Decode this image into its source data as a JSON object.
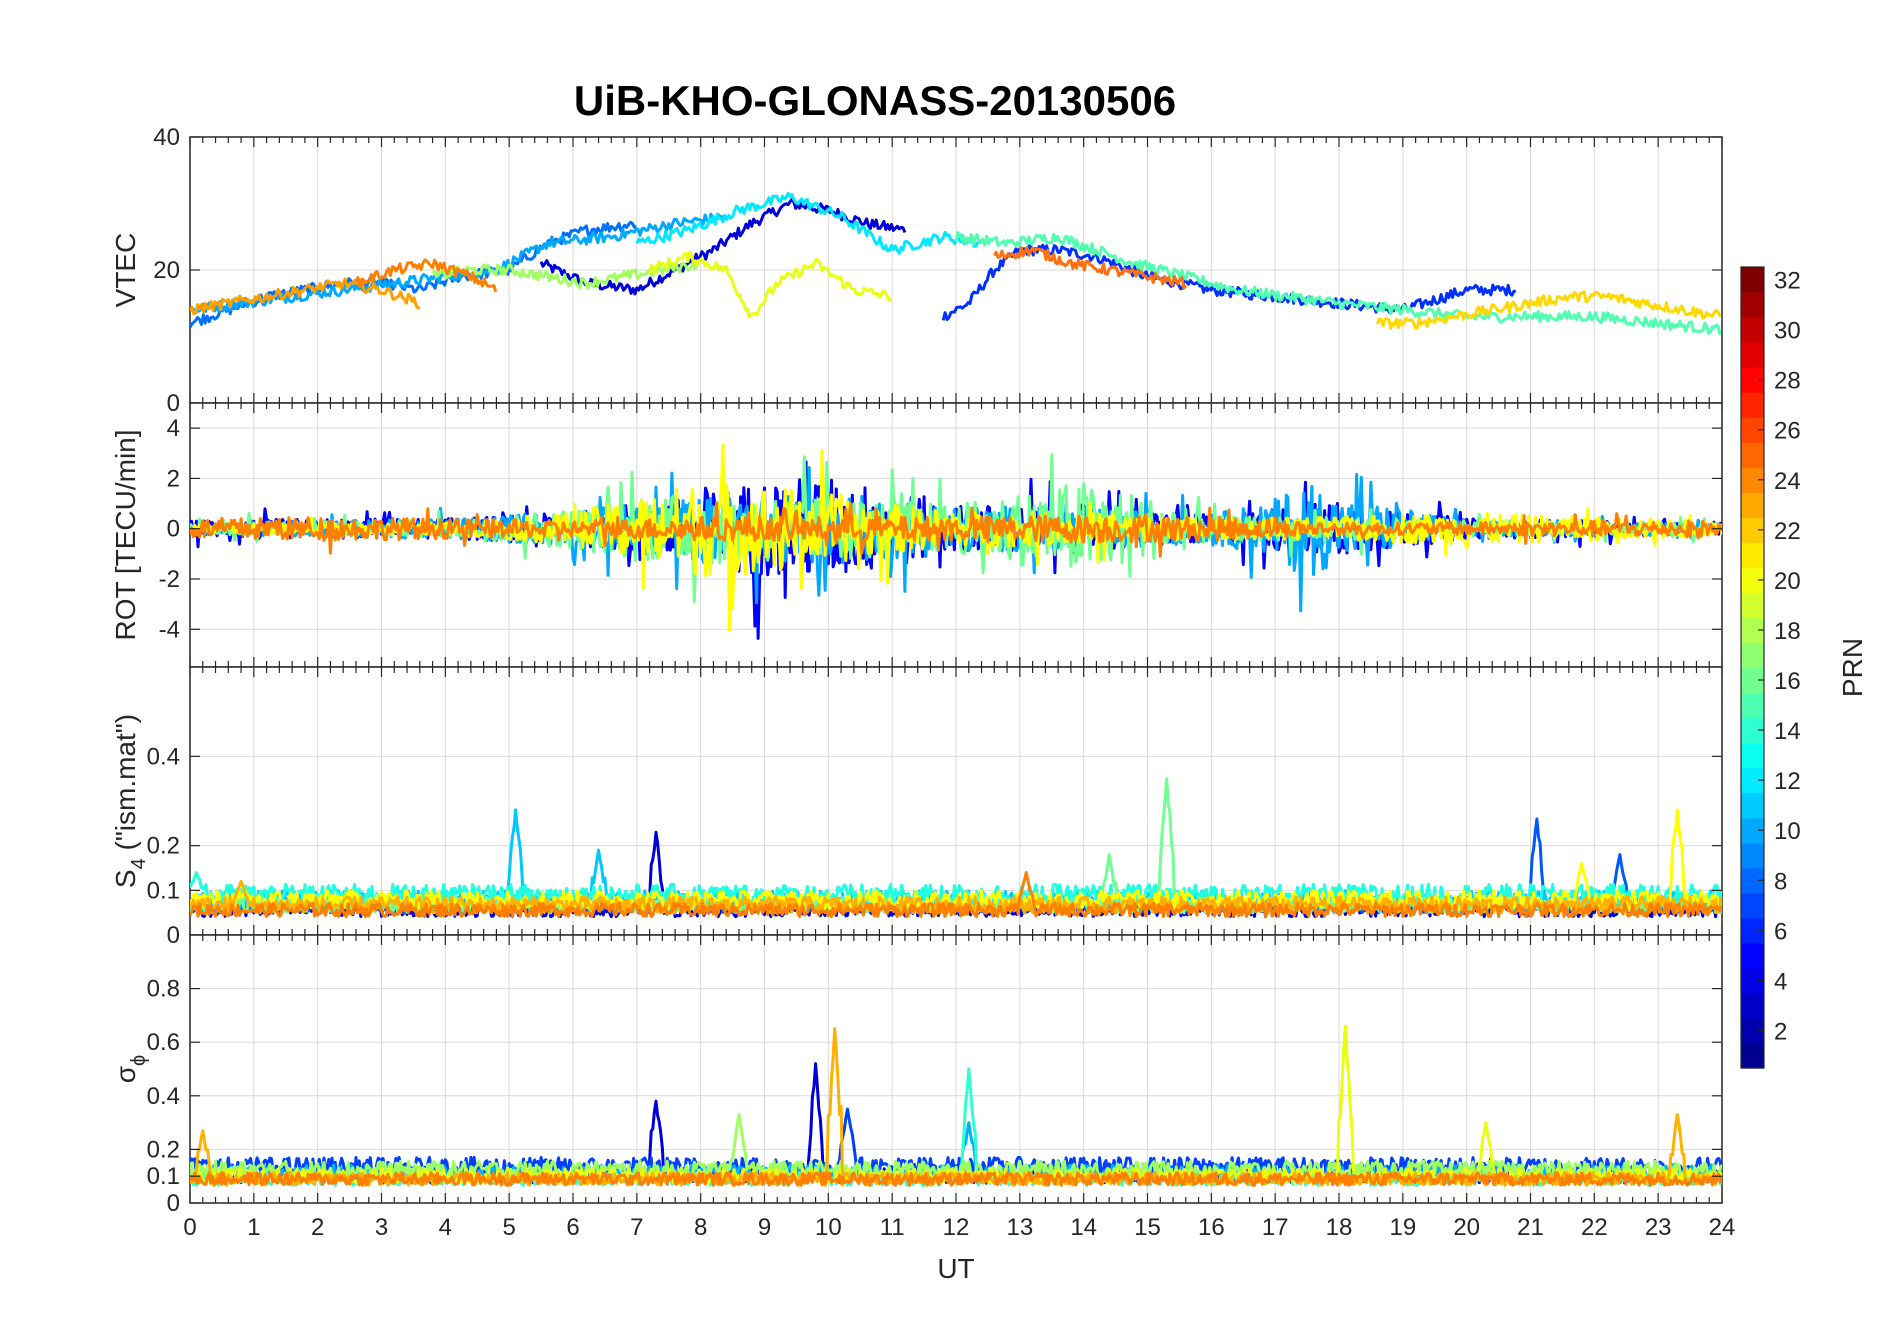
{
  "title": "UiB-KHO-GLONASS-20130506",
  "colorbar": {
    "label": "PRN",
    "ticks": [
      "2",
      "4",
      "6",
      "8",
      "10",
      "12",
      "14",
      "16",
      "18",
      "20",
      "22",
      "24",
      "26",
      "28",
      "30",
      "32"
    ],
    "min": 1,
    "max": 32,
    "colormap": [
      "#00008f",
      "#0000ff",
      "#0080ff",
      "#00ffff",
      "#80ff80",
      "#ffff00",
      "#ff8000",
      "#ff0000",
      "#800000"
    ]
  },
  "chart_data": [
    {
      "type": "line",
      "id": "vtec",
      "title": "UiB-KHO-GLONASS-20130506",
      "ylabel": "VTEC",
      "xlabel": "",
      "xlim": [
        0,
        24
      ],
      "ylim": [
        0,
        40
      ],
      "yticks": [
        "0",
        "20",
        "40"
      ],
      "grid": true,
      "series": [
        {
          "prn": 3,
          "color": "#0000d8",
          "x": [
            5.5,
            6.2,
            7.0,
            7.4,
            8.2,
            8.8,
            9.4,
            10.0,
            10.6,
            11.2
          ],
          "y": [
            21,
            18,
            17,
            19,
            23,
            27,
            30,
            29,
            27,
            26
          ]
        },
        {
          "prn": 5,
          "color": "#0030ff",
          "x": [
            11.8,
            12.2,
            12.6,
            13.0,
            13.6,
            14.2,
            15.0,
            16.0,
            17.0,
            18.0,
            19.0,
            20.0,
            20.8
          ],
          "y": [
            13,
            15,
            20,
            23,
            23,
            22,
            19,
            17,
            16,
            15,
            14,
            17,
            17
          ]
        },
        {
          "prn": 7,
          "color": "#0070ff",
          "x": [
            0,
            0.6,
            1.2,
            1.8,
            2.4,
            3.0,
            3.6,
            4.2,
            5.0,
            5.6,
            6.2,
            7.0
          ],
          "y": [
            12,
            14,
            16,
            17,
            18,
            18,
            17,
            19,
            20,
            24,
            26,
            27
          ]
        },
        {
          "prn": 9,
          "color": "#00a8ff",
          "x": [
            0,
            0.8,
            1.6,
            2.4,
            3.2,
            4.0,
            4.8,
            5.6,
            6.6,
            7.6,
            8.4
          ],
          "y": [
            14,
            15,
            16,
            17,
            18,
            19,
            20,
            24,
            25,
            27,
            28
          ]
        },
        {
          "prn": 12,
          "color": "#00e8ff",
          "x": [
            7.0,
            7.8,
            8.6,
            9.4,
            10.2,
            11.0,
            11.8,
            12.4
          ],
          "y": [
            24,
            26,
            29,
            31,
            28,
            23,
            25,
            24
          ]
        },
        {
          "prn": 15,
          "color": "#50ffb0",
          "x": [
            12.0,
            12.8,
            13.6,
            14.2,
            14.8,
            15.6,
            16.4,
            17.2,
            18.0,
            19.0,
            20.0,
            21.0,
            22.0,
            23.0,
            24.0
          ],
          "y": [
            25,
            24,
            25,
            23,
            21,
            19,
            17,
            16,
            15,
            14,
            13,
            13,
            13,
            12,
            11
          ]
        },
        {
          "prn": 17,
          "color": "#a0ff60",
          "x": [
            3.8,
            4.4,
            5.0,
            5.6,
            6.2,
            6.8,
            7.4,
            8.0
          ],
          "y": [
            19,
            20,
            20,
            19,
            18,
            19,
            20,
            21
          ]
        },
        {
          "prn": 19,
          "color": "#e8ff10",
          "x": [
            7.2,
            7.8,
            8.4,
            8.8,
            9.2,
            9.8,
            10.4,
            11.0
          ],
          "y": [
            20,
            22,
            20,
            13,
            18,
            21,
            17,
            16
          ]
        },
        {
          "prn": 21,
          "color": "#ffd800",
          "x": [
            18.6,
            19.2,
            19.8,
            20.4,
            21.0,
            21.6,
            22.2,
            22.8,
            23.4,
            24.0
          ],
          "y": [
            12,
            12,
            13,
            14,
            15,
            16,
            16,
            15,
            14,
            13
          ]
        },
        {
          "prn": 23,
          "color": "#ffa000",
          "x": [
            0,
            0.6,
            1.2,
            1.8,
            2.4,
            3.0,
            3.6
          ],
          "y": [
            14,
            15,
            16,
            17,
            18,
            17,
            15
          ]
        },
        {
          "prn": 24,
          "color": "#ff8000",
          "x": [
            2.6,
            3.2,
            3.8,
            4.4,
            4.8
          ],
          "y": [
            18,
            20,
            21,
            19,
            17
          ]
        },
        {
          "prn": 25,
          "color": "#ff7010",
          "x": [
            12.6,
            13.2,
            13.8,
            14.4,
            15.0,
            15.6
          ],
          "y": [
            22,
            23,
            21,
            20,
            19,
            18
          ]
        }
      ]
    },
    {
      "type": "line",
      "id": "rot",
      "ylabel": "ROT [TECU/min]",
      "xlabel": "",
      "xlim": [
        0,
        24
      ],
      "ylim": [
        -5.5,
        5
      ],
      "yticks": [
        "-4",
        "-2",
        "0",
        "2",
        "4"
      ],
      "grid": true,
      "series": [
        {
          "prn": 4,
          "color": "#0000ff",
          "x": [
            0,
            2,
            4,
            6,
            8,
            9,
            10,
            11,
            12,
            14,
            16,
            18,
            20,
            22,
            24
          ],
          "amp": [
            0.4,
            0.5,
            0.5,
            0.8,
            1.8,
            2.5,
            2.6,
            2.0,
            1.2,
            1.2,
            0.7,
            1.4,
            0.5,
            0.4,
            0.3
          ]
        },
        {
          "prn": 9,
          "color": "#00a8ff",
          "x": [
            0,
            2,
            4,
            6,
            8,
            10,
            12,
            14,
            16,
            17,
            17.5,
            18,
            20,
            22,
            24
          ],
          "amp": [
            0.3,
            0.4,
            0.5,
            0.9,
            1.6,
            1.8,
            1.2,
            1.0,
            0.7,
            1.5,
            2.5,
            1.6,
            0.4,
            0.3,
            0.3
          ]
        },
        {
          "prn": 16,
          "color": "#70ff90",
          "x": [
            0,
            2,
            4,
            6,
            7,
            8,
            10,
            12,
            13,
            14,
            15,
            16,
            18,
            20,
            22,
            24
          ],
          "amp": [
            0.3,
            0.4,
            0.4,
            1.0,
            1.6,
            1.8,
            1.6,
            1.2,
            1.8,
            2.4,
            1.6,
            0.6,
            0.6,
            0.4,
            0.3,
            0.3
          ]
        },
        {
          "prn": 20,
          "color": "#ffff00",
          "x": [
            0,
            4,
            6,
            7,
            8,
            9,
            10,
            11,
            12,
            14,
            16,
            18,
            20,
            22,
            24
          ],
          "amp": [
            0.2,
            0.3,
            0.8,
            1.6,
            2.4,
            2.2,
            1.8,
            1.2,
            0.9,
            0.8,
            0.5,
            0.6,
            0.8,
            0.6,
            0.4
          ]
        },
        {
          "prn": 24,
          "color": "#ff8000",
          "x": [
            0,
            2,
            4,
            6,
            8,
            10,
            12,
            14,
            16,
            18,
            20,
            22,
            24
          ],
          "amp": [
            0.5,
            0.6,
            0.5,
            0.4,
            0.6,
            0.6,
            0.6,
            0.7,
            0.6,
            0.3,
            0.3,
            0.4,
            0.4
          ]
        }
      ]
    },
    {
      "type": "line",
      "id": "s4",
      "ylabel": "S",
      "ylabel_sub": "4",
      "ylabel_rest": " (\"ism.mat\")",
      "xlabel": "",
      "xlim": [
        0,
        24
      ],
      "ylim": [
        0,
        0.6
      ],
      "yticks": [
        "0",
        "0.1",
        "0.2",
        "0.4"
      ],
      "grid": true,
      "series": [
        {
          "prn": 3,
          "color": "#0000d8",
          "base": 0.05,
          "spikes": [
            [
              7.3,
              0.23
            ]
          ]
        },
        {
          "prn": 8,
          "color": "#0058ff",
          "base": 0.06,
          "spikes": [
            [
              21.1,
              0.26
            ],
            [
              22.4,
              0.18
            ]
          ]
        },
        {
          "prn": 11,
          "color": "#00c8ff",
          "base": 0.07,
          "spikes": [
            [
              5.1,
              0.28
            ],
            [
              6.4,
              0.19
            ]
          ]
        },
        {
          "prn": 13,
          "color": "#20ffe0",
          "base": 0.08,
          "spikes": [
            [
              0.1,
              0.14
            ]
          ]
        },
        {
          "prn": 16,
          "color": "#70ff90",
          "base": 0.06,
          "spikes": [
            [
              15.3,
              0.35
            ],
            [
              14.4,
              0.18
            ]
          ]
        },
        {
          "prn": 20,
          "color": "#ffff00",
          "base": 0.07,
          "spikes": [
            [
              23.3,
              0.28
            ],
            [
              21.8,
              0.16
            ]
          ]
        },
        {
          "prn": 22,
          "color": "#ffb000",
          "base": 0.06,
          "spikes": [
            [
              0.8,
              0.12
            ]
          ]
        },
        {
          "prn": 24,
          "color": "#ff8000",
          "base": 0.05,
          "spikes": [
            [
              13.1,
              0.14
            ]
          ]
        }
      ]
    },
    {
      "type": "line",
      "id": "sigma",
      "ylabel": "σ",
      "ylabel_sub": "ϕ",
      "xlabel": "UT",
      "xlim": [
        0,
        24
      ],
      "ylim": [
        0,
        1
      ],
      "yticks": [
        "0",
        "0.1",
        "0.2",
        "0.4",
        "0.6",
        "0.8"
      ],
      "xticks": [
        "0",
        "1",
        "2",
        "3",
        "4",
        "5",
        "6",
        "7",
        "8",
        "9",
        "10",
        "11",
        "12",
        "13",
        "14",
        "15",
        "16",
        "17",
        "18",
        "19",
        "20",
        "21",
        "22",
        "23",
        "24"
      ],
      "grid": true,
      "series": [
        {
          "prn": 3,
          "color": "#0000d8",
          "base": 0.09,
          "spikes": [
            [
              7.3,
              0.38
            ],
            [
              9.8,
              0.52
            ]
          ]
        },
        {
          "prn": 6,
          "color": "#0040ff",
          "base": 0.12,
          "spikes": [
            [
              10.3,
              0.35
            ]
          ]
        },
        {
          "prn": 10,
          "color": "#00b0ff",
          "base": 0.1,
          "spikes": [
            [
              12.2,
              0.3
            ]
          ]
        },
        {
          "prn": 14,
          "color": "#30ffd0",
          "base": 0.08,
          "spikes": [
            [
              12.2,
              0.5
            ]
          ]
        },
        {
          "prn": 17,
          "color": "#a0ff60",
          "base": 0.11,
          "spikes": [
            [
              8.6,
              0.33
            ]
          ]
        },
        {
          "prn": 19,
          "color": "#e8ff10",
          "base": 0.09,
          "spikes": [
            [
              18.1,
              0.66
            ],
            [
              20.3,
              0.3
            ]
          ]
        },
        {
          "prn": 22,
          "color": "#ffb000",
          "base": 0.08,
          "spikes": [
            [
              10.1,
              0.65
            ],
            [
              23.3,
              0.33
            ],
            [
              0.2,
              0.27
            ]
          ]
        },
        {
          "prn": 24,
          "color": "#ff8000",
          "base": 0.08,
          "spikes": []
        }
      ]
    }
  ]
}
